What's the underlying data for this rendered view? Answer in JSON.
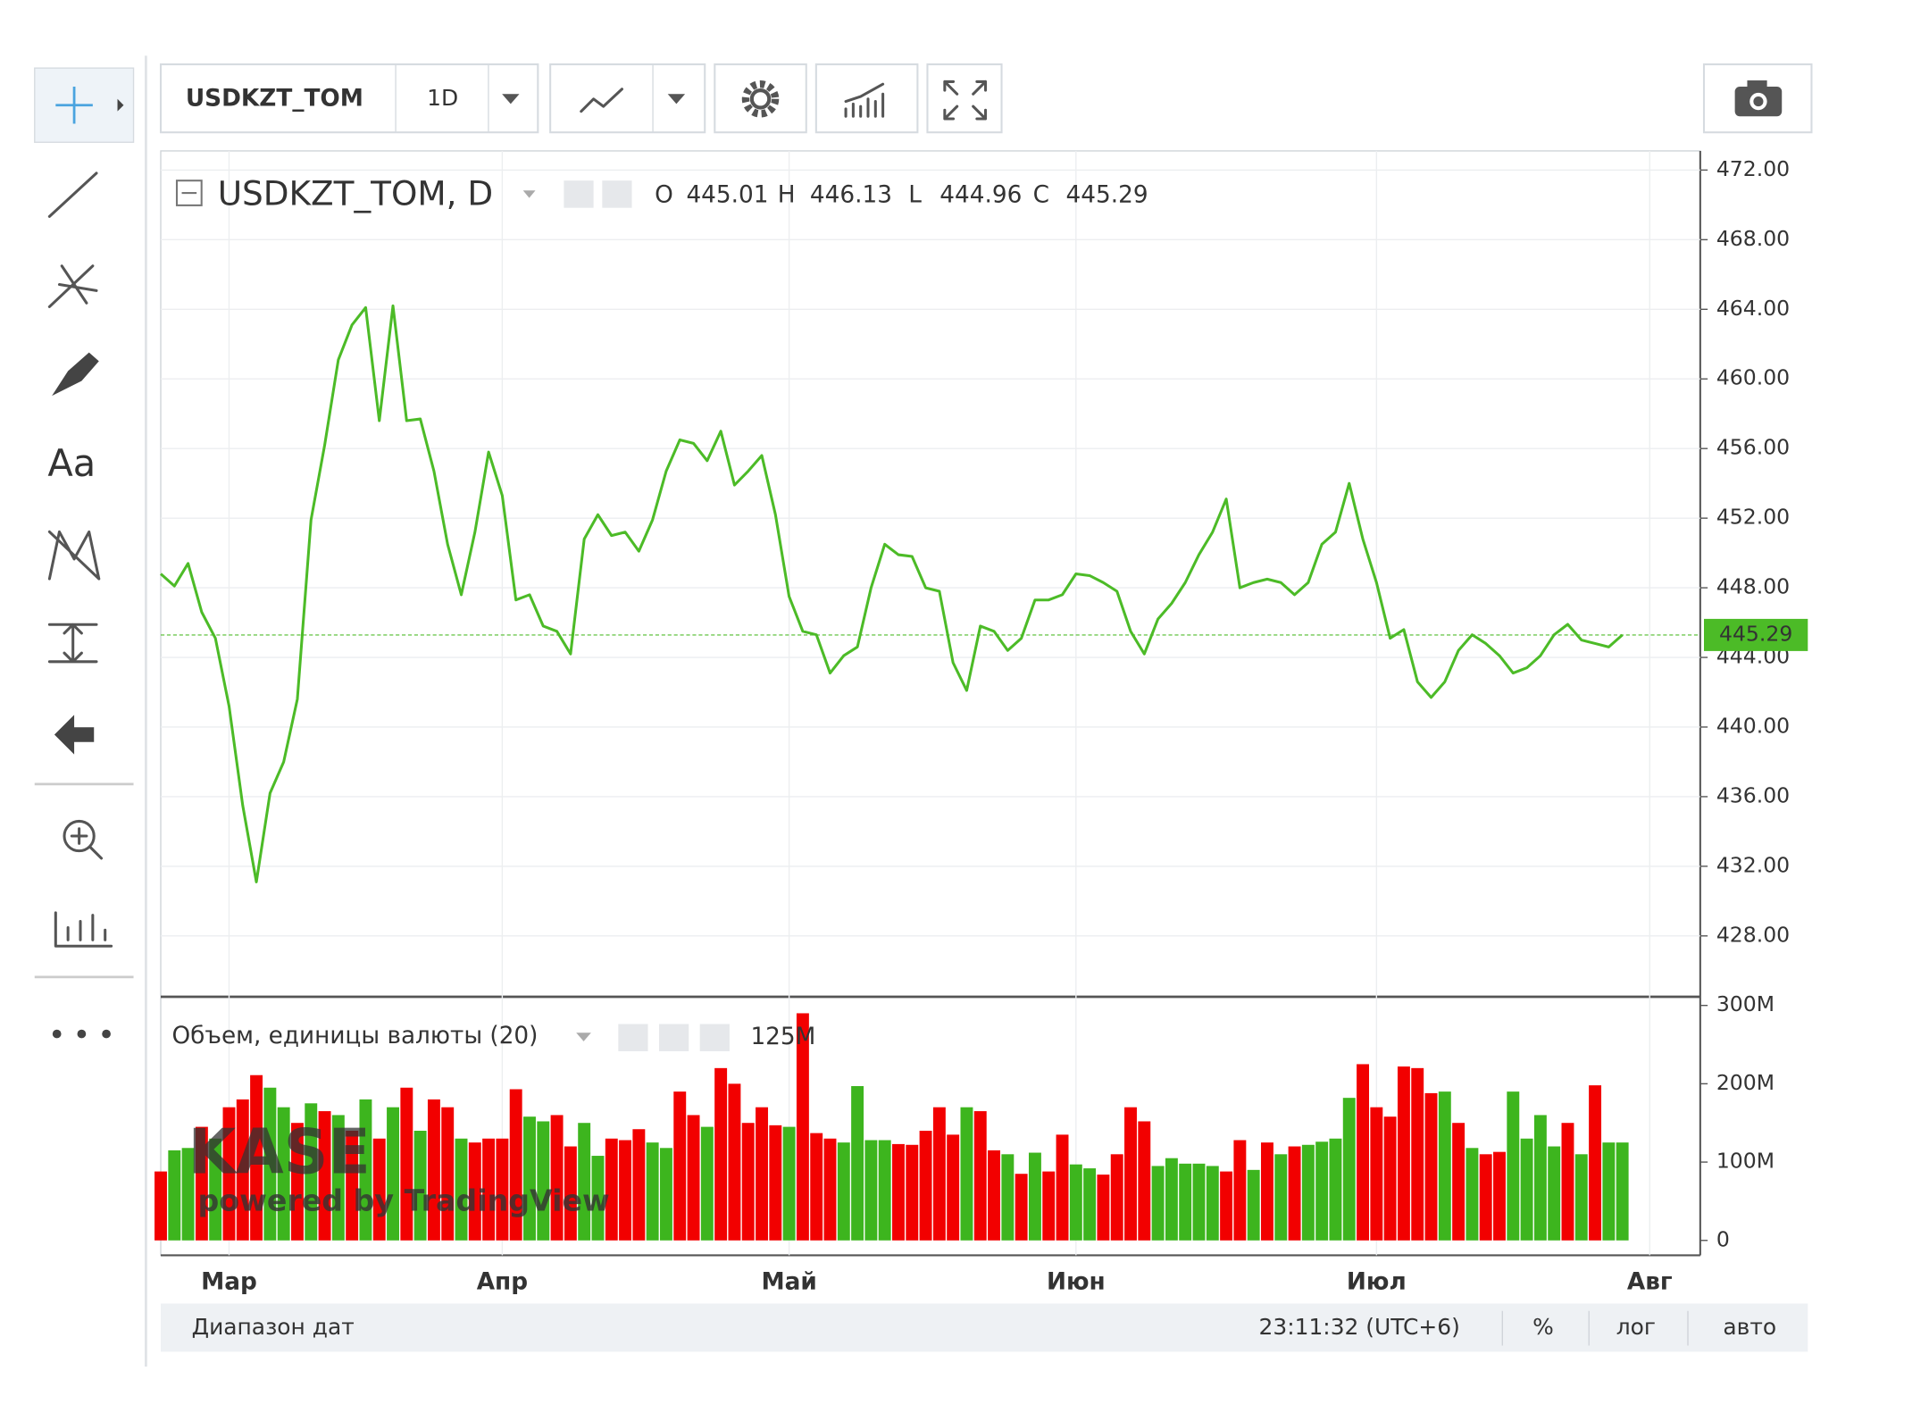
{
  "toolbar": {
    "symbol": "USDKZT_TOM",
    "interval": "1D"
  },
  "drawing_tools": {
    "text_tool": "Aa"
  },
  "watermark": {
    "logo": "KASE",
    "credit": "powered by TradingView"
  },
  "footer": {
    "date_range": "Диапазон дат",
    "time": "23:11:32 (UTC+6)",
    "percent": "%",
    "log": "лог",
    "auto": "авто"
  },
  "chart_data": [
    {
      "type": "line",
      "title": "USDKZT_TOM, D",
      "ohlc": [
        {
          "name": "O",
          "value": 445.01
        },
        {
          "name": "H",
          "value": 446.13
        },
        {
          "name": "L",
          "value": 444.96
        },
        {
          "name": "C",
          "value": 445.29
        }
      ],
      "values": [
        448.8,
        448.1,
        449.4,
        446.6,
        445.1,
        441.2,
        435.5,
        431.1,
        436.2,
        438.0,
        441.6,
        451.9,
        456.2,
        461.1,
        463.1,
        464.1,
        457.6,
        464.2,
        457.6,
        457.7,
        454.7,
        450.5,
        447.6,
        451.2,
        455.8,
        453.3,
        447.3,
        447.6,
        445.8,
        445.5,
        444.2,
        450.8,
        452.2,
        451.0,
        451.2,
        450.1,
        451.9,
        454.7,
        456.5,
        456.3,
        455.3,
        457.0,
        453.9,
        454.7,
        455.6,
        452.2,
        447.5,
        445.5,
        445.3,
        443.1,
        444.1,
        444.6,
        448.0,
        450.5,
        449.9,
        449.8,
        448.0,
        447.8,
        443.7,
        442.1,
        445.8,
        445.5,
        444.4,
        445.1,
        447.3,
        447.3,
        447.6,
        448.8,
        448.7,
        448.3,
        447.8,
        445.5,
        444.2,
        446.2,
        447.1,
        448.3,
        449.9,
        451.2,
        453.1,
        448.0,
        448.3,
        448.5,
        448.3,
        447.6,
        448.3,
        450.5,
        451.2,
        454.0,
        450.8,
        448.3,
        445.1,
        445.6,
        442.6,
        441.7,
        442.6,
        444.4,
        445.3,
        444.8,
        444.1,
        443.1,
        443.4,
        444.1,
        445.3,
        445.9,
        445.0,
        444.8,
        444.6,
        445.29,
        null,
        null,
        null,
        null
      ],
      "color": "#4cbb27",
      "ylim": [
        424.5,
        473.1
      ],
      "yticks": [
        {
          "value": 428,
          "label": "428.00"
        },
        {
          "value": 432,
          "label": "432.00"
        },
        {
          "value": 436,
          "label": "436.00"
        },
        {
          "value": 440,
          "label": "440.00"
        },
        {
          "value": 444,
          "label": "444.00"
        },
        {
          "value": 448,
          "label": "448.00"
        },
        {
          "value": 452,
          "label": "452.00"
        },
        {
          "value": 456,
          "label": "456.00"
        },
        {
          "value": 460,
          "label": "460.00"
        },
        {
          "value": 464,
          "label": "464.00"
        },
        {
          "value": 468,
          "label": "468.00"
        },
        {
          "value": 472,
          "label": "472.00"
        }
      ],
      "grid": true
    },
    {
      "type": "bar",
      "title": "Объем, единицы валюты (20)",
      "legend_value": {
        "value": 125000000,
        "label": "125M"
      },
      "categories": [
        null,
        null,
        null,
        null,
        null,
        "Мар",
        null,
        null,
        null,
        null,
        null,
        null,
        null,
        null,
        null,
        null,
        null,
        null,
        null,
        null,
        null,
        null,
        null,
        null,
        null,
        "Апр",
        null,
        null,
        null,
        null,
        null,
        null,
        null,
        null,
        null,
        null,
        null,
        null,
        null,
        null,
        null,
        null,
        null,
        null,
        null,
        null,
        "Май",
        null,
        null,
        null,
        null,
        null,
        null,
        null,
        null,
        null,
        null,
        null,
        null,
        null,
        null,
        null,
        null,
        null,
        null,
        null,
        null,
        "Июн",
        null,
        null,
        null,
        null,
        null,
        null,
        null,
        null,
        null,
        null,
        null,
        null,
        null,
        null,
        null,
        null,
        null,
        null,
        null,
        null,
        null,
        "Июл",
        null,
        null,
        null,
        null,
        null,
        null,
        null,
        null,
        null,
        null,
        null,
        null,
        null,
        null,
        null,
        null,
        null,
        null,
        null,
        "Авг",
        null,
        null
      ],
      "values": [
        88000000,
        115000000,
        118000000,
        145000000,
        130000000,
        170000000,
        180000000,
        211000000,
        195000000,
        170000000,
        150000000,
        175000000,
        165000000,
        160000000,
        140000000,
        180000000,
        130000000,
        170000000,
        195000000,
        140000000,
        180000000,
        170000000,
        130000000,
        125000000,
        130000000,
        130000000,
        193000000,
        158000000,
        152000000,
        160000000,
        120000000,
        150000000,
        108000000,
        130000000,
        128000000,
        142000000,
        125000000,
        118000000,
        190000000,
        160000000,
        145000000,
        220000000,
        200000000,
        150000000,
        170000000,
        147000000,
        145000000,
        290000000,
        137000000,
        130000000,
        125000000,
        197000000,
        128000000,
        128000000,
        123000000,
        122000000,
        140000000,
        170000000,
        135000000,
        170000000,
        165000000,
        115000000,
        110000000,
        85000000,
        112000000,
        88000000,
        135000000,
        97000000,
        92000000,
        84000000,
        110000000,
        170000000,
        152000000,
        95000000,
        105000000,
        98000000,
        98000000,
        95000000,
        88000000,
        128000000,
        90000000,
        125000000,
        110000000,
        120000000,
        122000000,
        126000000,
        130000000,
        182000000,
        225000000,
        170000000,
        158000000,
        222000000,
        220000000,
        188000000,
        190000000,
        150000000,
        118000000,
        110000000,
        113000000,
        190000000,
        130000000,
        160000000,
        120000000,
        150000000,
        110000000,
        198000000,
        125000000,
        125000000,
        null,
        null,
        null,
        null
      ],
      "colors": [
        "#f20000",
        "#3db51e",
        "#3db51e",
        "#f20000",
        "#3db51e",
        "#f20000",
        "#f20000",
        "#f20000",
        "#3db51e",
        "#3db51e",
        "#f20000",
        "#3db51e",
        "#f20000",
        "#3db51e",
        "#f20000",
        "#3db51e",
        "#f20000",
        "#3db51e",
        "#f20000",
        "#3db51e",
        "#f20000",
        "#f20000",
        "#3db51e",
        "#f20000",
        "#f20000",
        "#f20000",
        "#f20000",
        "#3db51e",
        "#3db51e",
        "#f20000",
        "#f20000",
        "#3db51e",
        "#3db51e",
        "#f20000",
        "#f20000",
        "#f20000",
        "#3db51e",
        "#3db51e",
        "#f20000",
        "#f20000",
        "#3db51e",
        "#f20000",
        "#f20000",
        "#f20000",
        "#f20000",
        "#f20000",
        "#3db51e",
        "#f20000",
        "#f20000",
        "#f20000",
        "#3db51e",
        "#3db51e",
        "#3db51e",
        "#3db51e",
        "#f20000",
        "#f20000",
        "#f20000",
        "#f20000",
        "#f20000",
        "#3db51e",
        "#f20000",
        "#f20000",
        "#3db51e",
        "#f20000",
        "#3db51e",
        "#f20000",
        "#f20000",
        "#3db51e",
        "#3db51e",
        "#f20000",
        "#f20000",
        "#f20000",
        "#f20000",
        "#3db51e",
        "#3db51e",
        "#3db51e",
        "#3db51e",
        "#3db51e",
        "#f20000",
        "#f20000",
        "#3db51e",
        "#f20000",
        "#3db51e",
        "#f20000",
        "#3db51e",
        "#3db51e",
        "#3db51e",
        "#3db51e",
        "#f20000",
        "#f20000",
        "#f20000",
        "#f20000",
        "#f20000",
        "#f20000",
        "#3db51e",
        "#f20000",
        "#3db51e",
        "#f20000",
        "#f20000",
        "#3db51e",
        "#3db51e",
        "#3db51e",
        "#3db51e",
        "#f20000",
        "#3db51e",
        "#f20000",
        "#3db51e",
        "#3db51e",
        null,
        null,
        null,
        null
      ],
      "ylim": [
        -19000000,
        311000000
      ],
      "yticks": [
        0,
        {
          "value": 100000000,
          "label": "100M"
        },
        {
          "value": 200000000,
          "label": "200M"
        },
        {
          "value": 300000000,
          "label": "300M"
        }
      ]
    }
  ]
}
